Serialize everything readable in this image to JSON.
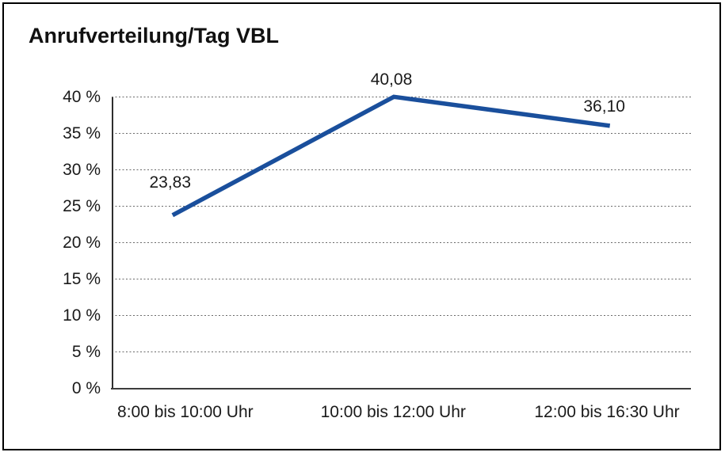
{
  "title": "Anrufverteilung/Tag VBL",
  "chart_data": {
    "type": "line",
    "title": "Anrufverteilung/Tag VBL",
    "categories": [
      "8:00 bis 10:00 Uhr",
      "10:00 bis 12:00 Uhr",
      "12:00 bis 16:30 Uhr"
    ],
    "values": [
      23.83,
      40.08,
      36.1
    ],
    "value_labels": [
      "23,83",
      "40,08",
      "36,10"
    ],
    "xlabel": "",
    "ylabel": "",
    "ylim": [
      0,
      40
    ],
    "ytick_step": 5,
    "ytick_labels": [
      "0 %",
      "5 %",
      "10 %",
      "15 %",
      "20 %",
      "25 %",
      "30 %",
      "35 %",
      "40 %"
    ],
    "grid": "horizontal-dotted",
    "legend_position": "none",
    "line_color": "#1a4f9c",
    "axis_color": "#2e2e2e",
    "text_color": "#1a1a1a"
  }
}
